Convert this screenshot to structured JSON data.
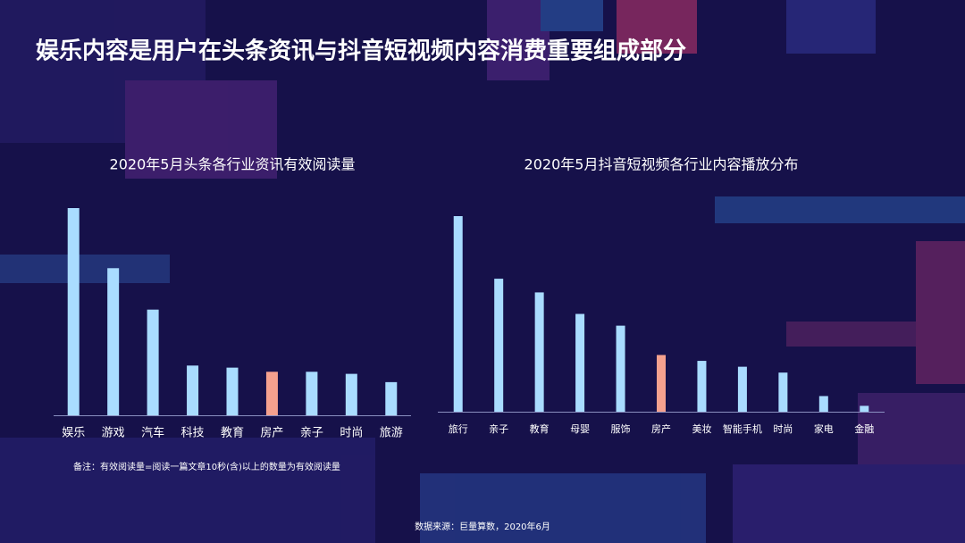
{
  "title": "娱乐内容是用户在头条资讯与抖音短视频内容消费重要组成部分",
  "note": "备注：有效阅读量=阅读一篇文章10秒(含)以上的数量为有效阅读量",
  "source": "数据来源：巨量算数，2020年6月",
  "chart_data": [
    {
      "type": "bar",
      "title": "2020年5月头条各行业资讯有效阅读量",
      "categories": [
        "娱乐",
        "游戏",
        "汽车",
        "科技",
        "教育",
        "房产",
        "亲子",
        "时尚",
        "旅游"
      ],
      "values": [
        100,
        71,
        51,
        24,
        23,
        21,
        21,
        20,
        16
      ],
      "colors": [
        "#a9dcff",
        "#a9dcff",
        "#a9dcff",
        "#a9dcff",
        "#a9dcff",
        "#f5a18e",
        "#a9dcff",
        "#a9dcff",
        "#a9dcff"
      ],
      "ylim": [
        0,
        100
      ]
    },
    {
      "type": "bar",
      "title": "2020年5月抖音短视频各行业内容播放分布",
      "categories": [
        "旅行",
        "亲子",
        "教育",
        "母婴",
        "服饰",
        "房产",
        "美妆",
        "智能手机",
        "时尚",
        "家电",
        "金融"
      ],
      "values": [
        100,
        68,
        61,
        50,
        44,
        29,
        26,
        23,
        20,
        8,
        3
      ],
      "colors": [
        "#a9dcff",
        "#a9dcff",
        "#a9dcff",
        "#a9dcff",
        "#a9dcff",
        "#f5a18e",
        "#a9dcff",
        "#a9dcff",
        "#a9dcff",
        "#a9dcff",
        "#a9dcff"
      ],
      "ylim": [
        0,
        100
      ]
    }
  ]
}
